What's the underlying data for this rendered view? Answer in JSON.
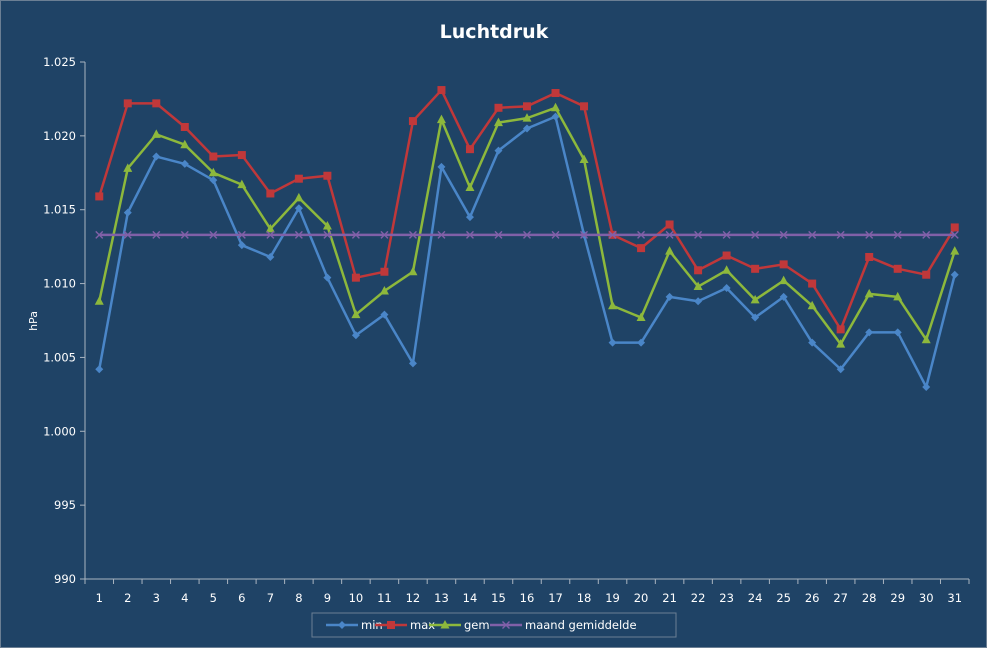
{
  "chart_data": {
    "type": "line",
    "title": "Luchtdruk",
    "xlabel": "",
    "ylabel": "hPa",
    "ylim": [
      990,
      1025
    ],
    "y_ticks": [
      990,
      995,
      1000,
      1005,
      1010,
      1015,
      1020,
      1025
    ],
    "y_tick_labels": [
      "990",
      "995",
      "1.000",
      "1.005",
      "1.010",
      "1.015",
      "1.020",
      "1.025"
    ],
    "categories": [
      "1",
      "2",
      "3",
      "4",
      "5",
      "6",
      "7",
      "8",
      "9",
      "10",
      "11",
      "12",
      "13",
      "14",
      "15",
      "16",
      "17",
      "18",
      "19",
      "20",
      "21",
      "22",
      "23",
      "24",
      "25",
      "26",
      "27",
      "28",
      "29",
      "30",
      "31"
    ],
    "grid": false,
    "legend_position": "bottom",
    "series": [
      {
        "name": "min",
        "color": "#4a86c8",
        "marker": "diamond",
        "values": [
          1004.2,
          1014.8,
          1018.6,
          1018.1,
          1017.0,
          1012.6,
          1011.8,
          1015.1,
          1010.4,
          1006.5,
          1007.9,
          1004.6,
          1017.9,
          1014.5,
          1019.0,
          1020.5,
          1021.3,
          1013.3,
          1006.0,
          1006.0,
          1009.1,
          1008.8,
          1009.7,
          1007.7,
          1009.1,
          1006.0,
          1004.2,
          1006.7,
          1006.7,
          1003.0,
          1010.6
        ]
      },
      {
        "name": "max",
        "color": "#c0383a",
        "marker": "square",
        "values": [
          1015.9,
          1022.2,
          1022.2,
          1020.6,
          1018.6,
          1018.7,
          1016.1,
          1017.1,
          1017.3,
          1010.4,
          1010.8,
          1021.0,
          1023.1,
          1019.1,
          1021.9,
          1022.0,
          1022.9,
          1022.0,
          1013.3,
          1012.4,
          1014.0,
          1010.9,
          1011.9,
          1011.0,
          1011.3,
          1010.0,
          1006.9,
          1011.8,
          1011.0,
          1010.6,
          1013.8
        ]
      },
      {
        "name": "gem",
        "color": "#8db83c",
        "marker": "triangle",
        "values": [
          1008.8,
          1017.8,
          1020.1,
          1019.4,
          1017.5,
          1016.7,
          1013.7,
          1015.8,
          1013.9,
          1007.9,
          1009.5,
          1010.8,
          1021.1,
          1016.5,
          1020.9,
          1021.2,
          1021.9,
          1018.4,
          1008.5,
          1007.7,
          1012.2,
          1009.8,
          1010.9,
          1008.9,
          1010.2,
          1008.5,
          1005.9,
          1009.3,
          1009.1,
          1006.2,
          1012.2
        ]
      },
      {
        "name": "maand gemiddelde",
        "color": "#8060a8",
        "marker": "x",
        "values": [
          1013.3,
          1013.3,
          1013.3,
          1013.3,
          1013.3,
          1013.3,
          1013.3,
          1013.3,
          1013.3,
          1013.3,
          1013.3,
          1013.3,
          1013.3,
          1013.3,
          1013.3,
          1013.3,
          1013.3,
          1013.3,
          1013.3,
          1013.3,
          1013.3,
          1013.3,
          1013.3,
          1013.3,
          1013.3,
          1013.3,
          1013.3,
          1013.3,
          1013.3,
          1013.3,
          1013.3
        ]
      }
    ]
  }
}
